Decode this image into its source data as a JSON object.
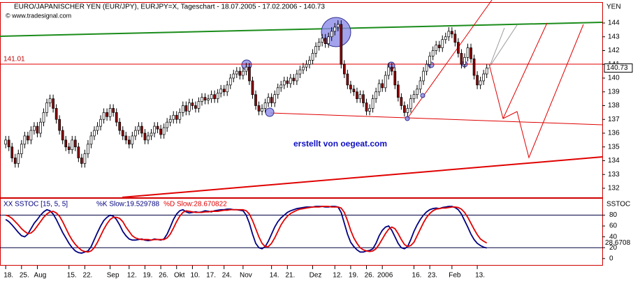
{
  "chart_data": {
    "type": "candlestick",
    "title": "EURO/JAPANISCHER YEN (EUR/JPY), EURJPY=X, Tageschart - 18.07.2005 - 17.02.2006 - 140.73",
    "source": "© www.tradesignal.com",
    "y_axis_label": "YEN",
    "annotation": "erstellt von oegeat.com",
    "hline": 141.01,
    "last_price": 140.73,
    "ylim": [
      131.34,
      145.52
    ],
    "yticks": [
      132,
      133,
      134,
      135,
      136,
      137,
      138,
      139,
      140,
      141,
      142,
      143,
      144
    ],
    "xlim": [
      -1.8,
      188.5
    ],
    "xticks": [
      {
        "value": 0,
        "label": "18."
      },
      {
        "value": 5,
        "label": "25."
      },
      {
        "value": 10,
        "label": "Aug"
      },
      {
        "value": 20,
        "label": "15."
      },
      {
        "value": 25,
        "label": "22."
      },
      {
        "value": 33,
        "label": "Sep"
      },
      {
        "value": 39,
        "label": "12."
      },
      {
        "value": 44,
        "label": "19."
      },
      {
        "value": 49,
        "label": "26."
      },
      {
        "value": 54,
        "label": "Okt"
      },
      {
        "value": 59,
        "label": "10."
      },
      {
        "value": 64,
        "label": "17."
      },
      {
        "value": 69,
        "label": "24."
      },
      {
        "value": 75,
        "label": "Nov"
      },
      {
        "value": 84,
        "label": "14."
      },
      {
        "value": 89,
        "label": "21."
      },
      {
        "value": 97,
        "label": "Dez"
      },
      {
        "value": 104,
        "label": "12."
      },
      {
        "value": 109,
        "label": "19."
      },
      {
        "value": 114,
        "label": "26."
      },
      {
        "value": 119,
        "label": "2006"
      },
      {
        "value": 129,
        "label": "16."
      },
      {
        "value": 134,
        "label": "23."
      },
      {
        "value": 141,
        "label": "Feb"
      },
      {
        "value": 149,
        "label": "13."
      }
    ],
    "up_color": "#ffffff",
    "down_color": "#8b0000",
    "candles": [
      [
        135.2,
        135.8,
        134.9,
        135.5
      ],
      [
        135.5,
        135.8,
        134.7,
        135.0
      ],
      [
        135.0,
        135.3,
        133.9,
        134.2
      ],
      [
        134.2,
        134.5,
        133.5,
        133.8
      ],
      [
        133.8,
        134.8,
        133.5,
        134.5
      ],
      [
        134.5,
        135.5,
        134.2,
        135.2
      ],
      [
        135.2,
        136.1,
        134.9,
        135.8
      ],
      [
        135.8,
        136.1,
        135.2,
        135.5
      ],
      [
        135.5,
        136.5,
        135.2,
        136.2
      ],
      [
        136.2,
        136.8,
        135.9,
        136.5
      ],
      [
        136.5,
        136.8,
        135.7,
        136.0
      ],
      [
        136.0,
        137.1,
        135.7,
        136.8
      ],
      [
        136.8,
        137.8,
        136.5,
        137.5
      ],
      [
        137.5,
        138.5,
        137.2,
        138.2
      ],
      [
        138.2,
        138.8,
        137.9,
        138.5
      ],
      [
        138.5,
        138.8,
        137.5,
        137.8
      ],
      [
        137.8,
        138.1,
        136.7,
        137.0
      ],
      [
        137.0,
        137.3,
        135.9,
        136.2
      ],
      [
        136.2,
        136.5,
        135.2,
        135.5
      ],
      [
        135.5,
        135.8,
        134.7,
        135.0
      ],
      [
        135.0,
        135.3,
        134.5,
        134.8
      ],
      [
        134.8,
        135.8,
        134.5,
        135.5
      ],
      [
        135.5,
        135.8,
        134.7,
        135.0
      ],
      [
        135.0,
        135.3,
        133.9,
        134.2
      ],
      [
        134.2,
        134.5,
        133.5,
        133.8
      ],
      [
        133.8,
        134.8,
        133.5,
        134.5
      ],
      [
        134.5,
        135.5,
        134.2,
        135.2
      ],
      [
        135.2,
        136.1,
        134.9,
        135.8
      ],
      [
        135.8,
        136.5,
        135.5,
        136.2
      ],
      [
        136.2,
        136.8,
        135.9,
        136.5
      ],
      [
        136.5,
        137.3,
        136.2,
        137.0
      ],
      [
        137.0,
        137.8,
        136.7,
        137.5
      ],
      [
        137.5,
        137.8,
        136.9,
        137.2
      ],
      [
        137.2,
        138.1,
        136.9,
        137.8
      ],
      [
        137.8,
        138.1,
        137.2,
        137.5
      ],
      [
        137.5,
        137.8,
        136.5,
        136.8
      ],
      [
        136.8,
        137.1,
        135.9,
        136.2
      ],
      [
        136.2,
        136.5,
        135.5,
        135.8
      ],
      [
        135.8,
        136.1,
        135.2,
        135.5
      ],
      [
        135.5,
        135.8,
        134.9,
        135.2
      ],
      [
        135.2,
        136.1,
        134.9,
        135.8
      ],
      [
        135.8,
        136.5,
        135.5,
        136.2
      ],
      [
        136.2,
        136.8,
        135.9,
        136.5
      ],
      [
        136.5,
        136.8,
        135.7,
        136.0
      ],
      [
        136.0,
        136.3,
        135.2,
        135.5
      ],
      [
        135.5,
        136.1,
        135.2,
        135.8
      ],
      [
        135.8,
        136.3,
        135.5,
        136.0
      ],
      [
        136.0,
        136.8,
        135.7,
        136.5
      ],
      [
        136.5,
        136.8,
        136.0,
        136.3
      ],
      [
        136.3,
        136.6,
        135.6,
        135.9
      ],
      [
        135.9,
        136.7,
        135.6,
        136.4
      ],
      [
        136.4,
        137.1,
        136.1,
        136.8
      ],
      [
        136.8,
        137.3,
        136.5,
        137.0
      ],
      [
        137.0,
        137.6,
        136.7,
        137.3
      ],
      [
        137.3,
        137.6,
        136.7,
        137.0
      ],
      [
        137.0,
        137.8,
        136.7,
        137.5
      ],
      [
        137.5,
        138.3,
        137.2,
        138.0
      ],
      [
        138.0,
        138.3,
        137.3,
        137.6
      ],
      [
        137.6,
        138.5,
        137.3,
        138.2
      ],
      [
        138.2,
        138.5,
        137.7,
        138.0
      ],
      [
        138.0,
        138.3,
        137.5,
        137.8
      ],
      [
        137.8,
        138.6,
        137.5,
        138.3
      ],
      [
        138.3,
        138.9,
        138.0,
        138.6
      ],
      [
        138.6,
        138.9,
        138.1,
        138.4
      ],
      [
        138.4,
        138.8,
        138.1,
        138.5
      ],
      [
        138.5,
        139.1,
        138.2,
        138.8
      ],
      [
        138.8,
        139.1,
        138.2,
        138.5
      ],
      [
        138.5,
        139.2,
        138.2,
        138.9
      ],
      [
        138.9,
        139.5,
        138.6,
        139.2
      ],
      [
        139.2,
        139.5,
        138.7,
        139.0
      ],
      [
        139.0,
        139.8,
        138.7,
        139.5
      ],
      [
        139.5,
        140.3,
        139.2,
        140.0
      ],
      [
        140.0,
        140.6,
        139.7,
        140.3
      ],
      [
        140.3,
        140.8,
        140.0,
        140.5
      ],
      [
        140.5,
        140.8,
        139.9,
        140.2
      ],
      [
        140.2,
        140.8,
        139.9,
        140.5
      ],
      [
        140.5,
        141.1,
        140.2,
        140.8
      ],
      [
        140.8,
        141.1,
        139.5,
        139.8
      ],
      [
        139.8,
        140.1,
        138.5,
        138.8
      ],
      [
        138.8,
        139.1,
        137.7,
        138.0
      ],
      [
        138.0,
        138.3,
        137.3,
        137.6
      ],
      [
        137.6,
        138.1,
        137.3,
        137.8
      ],
      [
        137.8,
        138.5,
        137.5,
        138.2
      ],
      [
        138.2,
        138.9,
        137.9,
        138.6
      ],
      [
        138.6,
        138.9,
        137.9,
        138.2
      ],
      [
        138.2,
        139.1,
        137.9,
        138.8
      ],
      [
        138.8,
        139.6,
        138.5,
        139.3
      ],
      [
        139.3,
        139.8,
        139.0,
        139.5
      ],
      [
        139.5,
        140.1,
        139.2,
        139.8
      ],
      [
        139.8,
        140.1,
        139.3,
        139.6
      ],
      [
        139.6,
        140.3,
        139.3,
        140.0
      ],
      [
        140.0,
        140.3,
        139.5,
        139.8
      ],
      [
        139.8,
        140.6,
        139.5,
        140.3
      ],
      [
        140.3,
        140.9,
        140.0,
        140.6
      ],
      [
        140.6,
        141.1,
        140.3,
        140.8
      ],
      [
        140.8,
        141.3,
        140.5,
        141.0
      ],
      [
        141.0,
        141.6,
        140.7,
        141.3
      ],
      [
        141.3,
        142.1,
        141.0,
        141.8
      ],
      [
        141.8,
        142.6,
        141.5,
        142.3
      ],
      [
        142.3,
        142.9,
        142.0,
        142.6
      ],
      [
        142.6,
        143.2,
        142.3,
        142.9
      ],
      [
        142.9,
        143.2,
        142.2,
        142.5
      ],
      [
        142.5,
        143.3,
        142.2,
        143.0
      ],
      [
        143.0,
        143.7,
        142.7,
        143.4
      ],
      [
        143.4,
        144.0,
        143.1,
        143.7
      ],
      [
        143.7,
        144.2,
        143.4,
        143.9
      ],
      [
        143.9,
        144.2,
        140.7,
        141.0
      ],
      [
        141.0,
        141.3,
        140.0,
        140.3
      ],
      [
        140.3,
        140.6,
        139.2,
        139.5
      ],
      [
        139.5,
        139.8,
        138.9,
        139.2
      ],
      [
        139.2,
        139.5,
        138.7,
        139.0
      ],
      [
        139.0,
        139.3,
        138.2,
        138.5
      ],
      [
        138.5,
        139.1,
        138.2,
        138.8
      ],
      [
        138.8,
        139.1,
        137.9,
        138.2
      ],
      [
        138.2,
        138.5,
        137.3,
        137.6
      ],
      [
        137.6,
        138.1,
        137.3,
        137.8
      ],
      [
        137.8,
        138.8,
        137.5,
        138.5
      ],
      [
        138.5,
        139.3,
        138.2,
        139.0
      ],
      [
        139.0,
        139.9,
        138.7,
        139.6
      ],
      [
        139.6,
        139.9,
        139.0,
        139.3
      ],
      [
        139.3,
        140.5,
        139.0,
        140.2
      ],
      [
        140.2,
        141.1,
        139.9,
        140.8
      ],
      [
        140.8,
        141.1,
        140.2,
        140.5
      ],
      [
        140.5,
        140.8,
        139.2,
        139.5
      ],
      [
        139.5,
        139.8,
        138.3,
        138.6
      ],
      [
        138.6,
        138.9,
        137.7,
        138.0
      ],
      [
        138.0,
        138.3,
        137.2,
        137.5
      ],
      [
        137.5,
        138.1,
        137.2,
        137.8
      ],
      [
        137.8,
        138.8,
        137.5,
        138.5
      ],
      [
        138.5,
        139.1,
        138.2,
        138.8
      ],
      [
        138.8,
        139.5,
        138.5,
        139.2
      ],
      [
        139.2,
        140.1,
        138.9,
        139.8
      ],
      [
        139.8,
        140.8,
        139.5,
        140.5
      ],
      [
        140.5,
        141.3,
        140.2,
        141.0
      ],
      [
        141.0,
        141.9,
        140.7,
        141.6
      ],
      [
        141.6,
        142.3,
        141.3,
        142.0
      ],
      [
        142.0,
        142.7,
        141.7,
        142.4
      ],
      [
        142.4,
        142.7,
        141.9,
        142.2
      ],
      [
        142.2,
        143.1,
        141.9,
        142.8
      ],
      [
        142.8,
        143.3,
        142.5,
        143.0
      ],
      [
        143.0,
        143.7,
        142.7,
        143.4
      ],
      [
        143.4,
        143.7,
        142.9,
        143.2
      ],
      [
        143.2,
        143.5,
        142.3,
        142.6
      ],
      [
        142.6,
        142.9,
        141.5,
        141.8
      ],
      [
        141.8,
        142.1,
        140.7,
        141.0
      ],
      [
        141.0,
        141.8,
        140.7,
        141.5
      ],
      [
        141.5,
        142.5,
        141.2,
        142.2
      ],
      [
        142.2,
        142.5,
        141.1,
        141.4
      ],
      [
        141.4,
        141.7,
        139.9,
        140.2
      ],
      [
        140.2,
        140.5,
        139.2,
        139.5
      ],
      [
        139.5,
        140.1,
        139.2,
        139.8
      ],
      [
        139.8,
        140.6,
        139.5,
        140.3
      ],
      [
        140.3,
        141.0,
        140.0,
        140.73
      ]
    ],
    "indicator": {
      "title": "XX SSTOC [15, 5, 5]",
      "short_title": "SSTOC",
      "ylim": [
        -13.1,
        111.5
      ],
      "yticks": [
        0,
        20,
        40,
        60,
        80
      ],
      "levels": [
        80,
        20
      ],
      "last_label": 28.6708,
      "series": [
        {
          "name": "%K Slow:19.529788",
          "color": "#000080",
          "values": [
            72,
            68,
            62,
            55,
            48,
            42,
            40,
            45,
            55,
            65,
            72,
            80,
            86,
            90,
            88,
            82,
            72,
            60,
            48,
            38,
            28,
            20,
            14,
            11,
            10,
            12,
            14,
            22,
            35,
            48,
            60,
            70,
            76,
            80,
            78,
            72,
            62,
            50,
            42,
            36,
            34,
            34,
            35,
            36,
            34,
            33,
            34,
            36,
            35,
            34,
            36,
            45,
            58,
            72,
            82,
            88,
            90,
            86,
            84,
            85,
            86,
            85,
            86,
            88,
            87,
            86,
            88,
            89,
            90,
            90,
            91,
            91,
            90,
            90,
            89,
            88,
            80,
            65,
            45,
            28,
            20,
            18,
            22,
            32,
            45,
            58,
            68,
            75,
            80,
            85,
            88,
            90,
            92,
            93,
            94,
            95,
            95,
            95,
            96,
            96,
            96,
            95,
            95,
            96,
            96,
            95,
            85,
            65,
            45,
            30,
            22,
            16,
            12,
            12,
            14,
            15,
            18,
            28,
            42,
            52,
            58,
            60,
            52,
            40,
            28,
            20,
            18,
            22,
            35,
            50,
            62,
            72,
            80,
            86,
            90,
            92,
            93,
            92,
            94,
            95,
            96,
            96,
            94,
            90,
            82,
            70,
            58,
            45,
            35,
            28,
            24,
            21,
            19.529788
          ]
        },
        {
          "name": "%D Slow:28.670822",
          "color": "#e00000",
          "values": [
            80,
            78,
            74,
            68,
            62,
            55,
            50,
            46,
            47,
            52,
            60,
            68,
            76,
            82,
            86,
            87,
            84,
            78,
            68,
            56,
            44,
            34,
            26,
            20,
            15,
            13,
            12,
            14,
            20,
            30,
            42,
            54,
            64,
            72,
            76,
            76,
            74,
            68,
            58,
            50,
            42,
            38,
            36,
            35,
            35,
            35,
            34,
            35,
            35,
            35,
            35,
            38,
            45,
            56,
            68,
            78,
            85,
            88,
            87,
            86,
            85,
            85,
            85,
            86,
            86,
            87,
            87,
            87,
            88,
            89,
            89,
            90,
            90,
            90,
            90,
            90,
            88,
            82,
            70,
            55,
            40,
            28,
            22,
            22,
            28,
            38,
            50,
            62,
            71,
            78,
            83,
            86,
            89,
            91,
            92,
            93,
            94,
            95,
            95,
            95,
            96,
            96,
            96,
            95,
            95,
            95,
            93,
            85,
            70,
            52,
            38,
            28,
            20,
            16,
            14,
            13,
            14,
            18,
            26,
            36,
            46,
            54,
            58,
            55,
            46,
            35,
            26,
            22,
            24,
            30,
            42,
            54,
            66,
            76,
            83,
            88,
            91,
            92,
            93,
            93,
            94,
            95,
            95,
            94,
            91,
            85,
            76,
            65,
            54,
            44,
            36,
            32,
            28.670822
          ]
        }
      ]
    }
  }
}
